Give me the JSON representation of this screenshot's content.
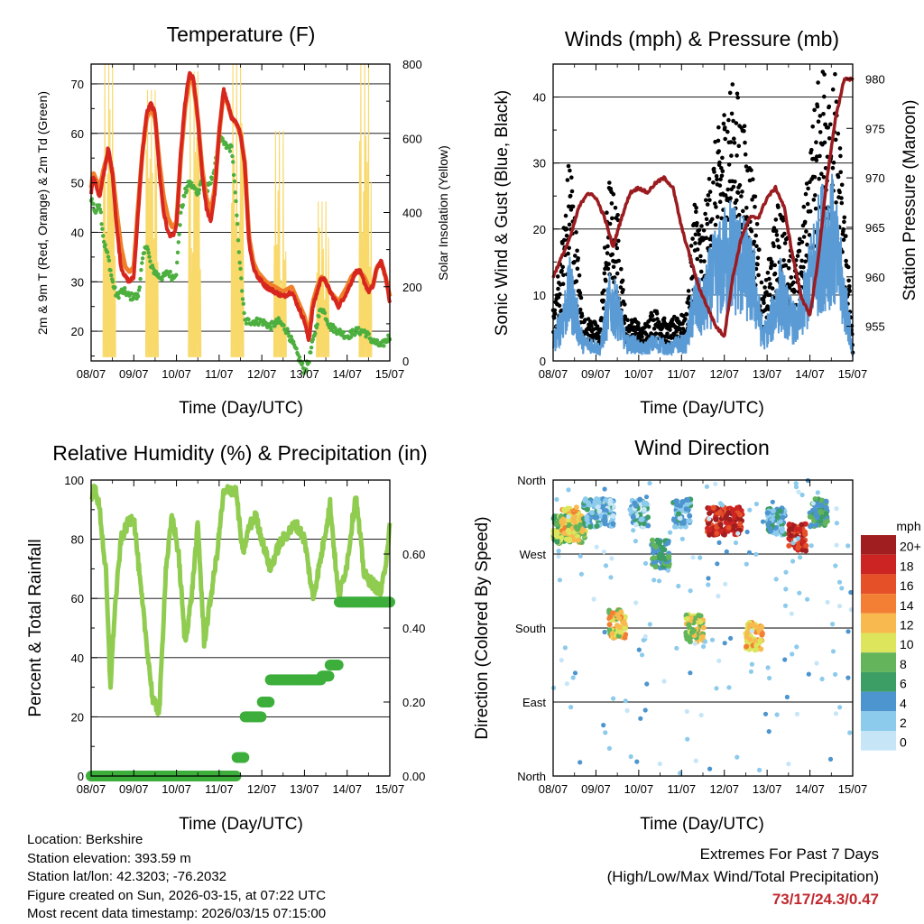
{
  "chart_data": [
    {
      "type": "line",
      "title": "Temperature (F)",
      "xlabel": "Time (Day/UTC)",
      "ylabel": "2m & 9m T (Red, Orange) & 2m Td (Green)",
      "y2label": "Solar Insolation (Yellow)",
      "x_ticks": [
        "08/07",
        "09/07",
        "10/07",
        "11/07",
        "12/07",
        "13/07",
        "14/07",
        "15/07"
      ],
      "ylim": [
        14,
        74
      ],
      "y_ticks": [
        20,
        30,
        40,
        50,
        60,
        70
      ],
      "y2lim": [
        0,
        800
      ],
      "y2_ticks": [
        0,
        200,
        400,
        600,
        800
      ],
      "grid": true,
      "series": [
        {
          "name": "2m T",
          "color": "#d7261e",
          "x": [
            0,
            0.05,
            0.1,
            0.2,
            0.3,
            0.4,
            0.5,
            0.6,
            0.7,
            0.8,
            0.9,
            1.0,
            1.1,
            1.2,
            1.3,
            1.4,
            1.5,
            1.6,
            1.7,
            1.8,
            1.9,
            2.0,
            2.1,
            2.2,
            2.3,
            2.4,
            2.5,
            2.6,
            2.7,
            2.8,
            2.9,
            3.0,
            3.1,
            3.2,
            3.3,
            3.4,
            3.5,
            3.6,
            3.7,
            3.8,
            3.9,
            4.0,
            4.1,
            4.3,
            4.5,
            4.7,
            4.9,
            5.0,
            5.1,
            5.2,
            5.3,
            5.4,
            5.5,
            5.6,
            5.8,
            6.0,
            6.1,
            6.2,
            6.3,
            6.4,
            6.5,
            6.6,
            6.7,
            6.8,
            6.9,
            7.0
          ],
          "values": [
            48,
            51,
            50,
            47,
            52,
            57,
            52,
            41,
            33,
            31,
            30,
            31,
            44,
            56,
            64,
            66,
            64,
            52,
            44,
            40,
            39,
            41,
            56,
            66,
            72,
            71,
            63,
            52,
            45,
            42,
            48,
            60,
            69,
            66,
            63,
            62,
            60,
            54,
            38,
            33,
            31,
            30,
            29,
            28,
            27,
            28,
            24,
            22,
            18,
            25,
            28,
            31,
            30,
            28,
            25,
            28,
            30,
            32,
            32,
            30,
            28,
            29,
            33,
            34,
            31,
            26
          ]
        },
        {
          "name": "9m T",
          "color": "#f07f2a",
          "x": [
            0,
            0.05,
            0.1,
            0.2,
            0.3,
            0.4,
            0.5,
            0.6,
            0.7,
            0.8,
            0.9,
            1.0,
            1.1,
            1.2,
            1.3,
            1.4,
            1.5,
            1.6,
            1.7,
            1.8,
            1.9,
            2.0,
            2.1,
            2.2,
            2.3,
            2.4,
            2.5,
            2.6,
            2.7,
            2.8,
            2.9,
            3.0,
            3.1,
            3.2,
            3.3,
            3.4,
            3.5,
            3.6,
            3.7,
            3.8,
            3.9,
            4.0,
            4.1,
            4.3,
            4.5,
            4.7,
            4.9,
            5.0,
            5.1,
            5.2,
            5.3,
            5.4,
            5.5,
            5.6,
            5.8,
            6.0,
            6.1,
            6.2,
            6.3,
            6.4,
            6.5,
            6.6,
            6.7,
            6.8,
            6.9,
            7.0
          ],
          "values": [
            49,
            52,
            51,
            49,
            53,
            56,
            52,
            44,
            37,
            33,
            32,
            33,
            45,
            56,
            63,
            65,
            63,
            54,
            47,
            43,
            41,
            42,
            55,
            65,
            71,
            70,
            63,
            53,
            47,
            44,
            49,
            60,
            68,
            66,
            63,
            62,
            60,
            54,
            39,
            34,
            32,
            31,
            30,
            29,
            28,
            29,
            25,
            23,
            19,
            26,
            29,
            31,
            30,
            28,
            26,
            29,
            31,
            32,
            32,
            31,
            29,
            29,
            33,
            34,
            31,
            27
          ]
        },
        {
          "name": "2m Td",
          "color": "#4caf3f",
          "x": [
            0,
            0.1,
            0.2,
            0.3,
            0.4,
            0.5,
            0.6,
            0.7,
            0.8,
            0.9,
            1.0,
            1.1,
            1.2,
            1.3,
            1.4,
            1.5,
            1.6,
            1.7,
            1.8,
            1.9,
            2.0,
            2.1,
            2.2,
            2.3,
            2.4,
            2.5,
            2.6,
            2.7,
            2.8,
            2.9,
            3.0,
            3.1,
            3.2,
            3.3,
            3.4,
            3.5,
            3.6,
            3.7,
            3.8,
            3.9,
            4.0,
            4.2,
            4.4,
            4.6,
            4.8,
            5.0,
            5.1,
            5.2,
            5.3,
            5.4,
            5.5,
            5.6,
            5.8,
            6.0,
            6.2,
            6.4,
            6.6,
            6.8,
            7.0
          ],
          "values": [
            47,
            44,
            46,
            38,
            35,
            30,
            27,
            28,
            28,
            27,
            27,
            27,
            34,
            38,
            33,
            32,
            31,
            31,
            32,
            31,
            32,
            44,
            48,
            50,
            49,
            48,
            51,
            48,
            50,
            53,
            59,
            58,
            57,
            57,
            45,
            32,
            22,
            22,
            22,
            22,
            22,
            21,
            22,
            20,
            16,
            12,
            14,
            18,
            22,
            25,
            23,
            21,
            20,
            19,
            20,
            20,
            18,
            17,
            19
          ]
        },
        {
          "name": "Solar Insolation",
          "color": "#f8d96a",
          "axis": "y2",
          "x": [
            0.3,
            0.42,
            0.52,
            1.32,
            1.42,
            1.52,
            2.32,
            2.42,
            2.52,
            3.32,
            3.42,
            3.52,
            4.32,
            4.42,
            4.52,
            5.32,
            5.42,
            5.52,
            6.32,
            6.42,
            6.52
          ],
          "values": [
            20,
            800,
            20,
            20,
            730,
            20,
            20,
            780,
            20,
            20,
            800,
            20,
            20,
            620,
            20,
            20,
            430,
            20,
            20,
            800,
            20
          ]
        }
      ]
    },
    {
      "type": "scatter",
      "title": "Winds (mph) & Pressure (mb)",
      "xlabel": "Time (Day/UTC)",
      "ylabel": "Sonic Wind & Gust (Blue, Black)",
      "y2label": "Station Pressure (Maroon)",
      "x_ticks": [
        "08/07",
        "09/07",
        "10/07",
        "11/07",
        "12/07",
        "13/07",
        "14/07",
        "15/07"
      ],
      "ylim": [
        0,
        45
      ],
      "y_ticks": [
        0,
        10,
        20,
        30,
        40
      ],
      "y2lim": [
        951.5,
        981.5
      ],
      "y2_ticks": [
        955,
        960,
        965,
        970,
        975,
        980
      ],
      "grid": true,
      "series": [
        {
          "name": "Gust",
          "color": "#000000",
          "x": [
            0,
            0.2,
            0.4,
            0.5,
            0.7,
            0.9,
            1.1,
            1.3,
            1.5,
            1.7,
            1.9,
            2.1,
            2.3,
            2.5,
            2.7,
            2.9,
            3.1,
            3.3,
            3.5,
            3.7,
            3.9,
            4.1,
            4.3,
            4.5,
            4.7,
            4.9,
            5.1,
            5.3,
            5.5,
            5.7,
            5.9,
            6.1,
            6.3,
            6.5,
            6.7,
            6.9,
            7.0
          ],
          "values": [
            6,
            14,
            26,
            18,
            5,
            5,
            4,
            22,
            18,
            5,
            5,
            4,
            6,
            6,
            4,
            6,
            5,
            20,
            16,
            24,
            28,
            33,
            32,
            27,
            22,
            7,
            14,
            20,
            14,
            12,
            20,
            30,
            36,
            40,
            26,
            12,
            2
          ]
        },
        {
          "name": "Wind",
          "color": "#5b9bd5",
          "x": [
            0,
            0.2,
            0.4,
            0.5,
            0.7,
            0.9,
            1.1,
            1.3,
            1.5,
            1.7,
            1.9,
            2.1,
            2.3,
            2.5,
            2.7,
            2.9,
            3.1,
            3.3,
            3.5,
            3.7,
            3.9,
            4.1,
            4.3,
            4.5,
            4.7,
            4.9,
            5.1,
            5.3,
            5.5,
            5.7,
            5.9,
            6.1,
            6.3,
            6.5,
            6.7,
            6.9,
            7.0
          ],
          "values": [
            3,
            7,
            12,
            9,
            3,
            3,
            2,
            10,
            9,
            3,
            3,
            2,
            3,
            3,
            2,
            3,
            3,
            10,
            9,
            14,
            16,
            19,
            18,
            16,
            13,
            4,
            7,
            12,
            8,
            6,
            11,
            17,
            21,
            22,
            15,
            7,
            1
          ]
        },
        {
          "name": "Station Pressure",
          "color": "#9b1c20",
          "axis": "y2",
          "x": [
            0,
            0.2,
            0.4,
            0.6,
            0.8,
            1.0,
            1.2,
            1.4,
            1.6,
            1.8,
            2.0,
            2.2,
            2.4,
            2.6,
            2.8,
            3.0,
            3.2,
            3.4,
            3.6,
            3.8,
            4.0,
            4.2,
            4.4,
            4.6,
            4.8,
            5.0,
            5.2,
            5.4,
            5.6,
            5.8,
            6.0,
            6.2,
            6.4,
            6.6,
            6.8,
            7.0
          ],
          "values": [
            960,
            962,
            964,
            967,
            968.5,
            968,
            966,
            963,
            966,
            968.5,
            969,
            968.5,
            969.5,
            970,
            969,
            965,
            962,
            959,
            957,
            955,
            954,
            960,
            964,
            966,
            966,
            968,
            969,
            967,
            962,
            958,
            956,
            962,
            970,
            976,
            980,
            980
          ]
        }
      ]
    },
    {
      "type": "line",
      "title": "Relative Humidity (%) & Precipitation (in)",
      "xlabel": "Time (Day/UTC)",
      "ylabel": "Percent & Total Rainfall",
      "x_ticks": [
        "08/07",
        "09/07",
        "10/07",
        "11/07",
        "12/07",
        "13/07",
        "14/07",
        "15/07"
      ],
      "ylim": [
        0,
        100
      ],
      "y_ticks": [
        0,
        20,
        40,
        60,
        80,
        100
      ],
      "y2lim": [
        0,
        0.8
      ],
      "y2_ticks": [
        "0.00",
        "0.20",
        "0.40",
        "0.60"
      ],
      "grid": true,
      "series": [
        {
          "name": "Relative Humidity",
          "color": "#8fcc4f",
          "x": [
            0,
            0.1,
            0.2,
            0.35,
            0.45,
            0.55,
            0.7,
            0.85,
            1.0,
            1.15,
            1.3,
            1.45,
            1.6,
            1.75,
            1.9,
            2.05,
            2.2,
            2.35,
            2.5,
            2.65,
            2.8,
            2.95,
            3.1,
            3.25,
            3.4,
            3.55,
            3.7,
            3.85,
            4.0,
            4.2,
            4.4,
            4.6,
            4.8,
            5.0,
            5.2,
            5.4,
            5.6,
            5.8,
            6.0,
            6.2,
            6.4,
            6.6,
            6.8,
            6.9,
            7.0
          ],
          "values": [
            95,
            97,
            90,
            68,
            30,
            55,
            80,
            85,
            88,
            65,
            45,
            25,
            22,
            70,
            88,
            75,
            45,
            60,
            85,
            45,
            60,
            75,
            95,
            97,
            96,
            75,
            84,
            88,
            80,
            70,
            78,
            82,
            85,
            80,
            60,
            75,
            92,
            60,
            72,
            95,
            68,
            65,
            62,
            72,
            84
          ]
        },
        {
          "name": "Total Precipitation",
          "color": "#3dae3b",
          "axis": "y2",
          "unit": "in",
          "x": [
            0,
            1,
            2,
            3,
            3.2,
            3.4,
            3.6,
            3.8,
            4.0,
            4.2,
            4.5,
            5.0,
            5.4,
            5.6,
            5.8,
            6.0,
            6.5,
            7.0
          ],
          "values": [
            0,
            0,
            0,
            0,
            0,
            0.05,
            0.16,
            0.16,
            0.2,
            0.26,
            0.26,
            0.26,
            0.27,
            0.3,
            0.47,
            0.47,
            0.47,
            0.47
          ]
        }
      ]
    },
    {
      "type": "scatter",
      "title": "Wind Direction",
      "xlabel": "Time (Day/UTC)",
      "ylabel": "Direction (Colored By Speed)",
      "x_ticks": [
        "08/07",
        "09/07",
        "10/07",
        "11/07",
        "12/07",
        "13/07",
        "14/07",
        "15/07"
      ],
      "y_ticks": [
        "North",
        "East",
        "South",
        "West",
        "North"
      ],
      "ylim": [
        0,
        360
      ],
      "grid": true,
      "colorbar": {
        "title": "mph",
        "labels": [
          "0",
          "2",
          "4",
          "6",
          "8",
          "10",
          "12",
          "14",
          "16",
          "18",
          "20+"
        ],
        "colors": [
          "#c6e6f8",
          "#8ccbec",
          "#4d95cf",
          "#3c9e64",
          "#63b45a",
          "#dce55b",
          "#f8ba4f",
          "#f27f33",
          "#e65028",
          "#cc2422",
          "#a01d20"
        ]
      },
      "clusters": [
        {
          "x": 0.0,
          "direction": 300,
          "speed": 8
        },
        {
          "x": 0.2,
          "direction": 310,
          "speed": 12
        },
        {
          "x": 0.35,
          "direction": 300,
          "speed": 10
        },
        {
          "x": 0.7,
          "direction": 320,
          "speed": 4
        },
        {
          "x": 1.0,
          "direction": 320,
          "speed": 3
        },
        {
          "x": 1.3,
          "direction": 185,
          "speed": 11
        },
        {
          "x": 1.8,
          "direction": 320,
          "speed": 3
        },
        {
          "x": 2.3,
          "direction": 270,
          "speed": 6
        },
        {
          "x": 2.8,
          "direction": 320,
          "speed": 3
        },
        {
          "x": 3.1,
          "direction": 180,
          "speed": 10
        },
        {
          "x": 3.6,
          "direction": 310,
          "speed": 18
        },
        {
          "x": 4.0,
          "direction": 310,
          "speed": 19
        },
        {
          "x": 4.5,
          "direction": 170,
          "speed": 12
        },
        {
          "x": 5.0,
          "direction": 310,
          "speed": 4
        },
        {
          "x": 5.5,
          "direction": 290,
          "speed": 18
        },
        {
          "x": 6.0,
          "direction": 320,
          "speed": 6
        }
      ]
    }
  ],
  "station": {
    "location": "Location: Berkshire",
    "elevation": "Station elevation: 393.59 m",
    "latlon": "Station lat/lon: 42.3203; -76.2032",
    "created": "Figure created on Sun, 2026-03-15, at 07:22 UTC",
    "recent": "Most recent data timestamp: 2026/03/15 07:15:00"
  },
  "extremes": {
    "title": "Extremes For Past 7 Days",
    "subtitle": "(High/Low/Max Wind/Total Precipitation)",
    "value": "73/17/24.3/0.47"
  }
}
